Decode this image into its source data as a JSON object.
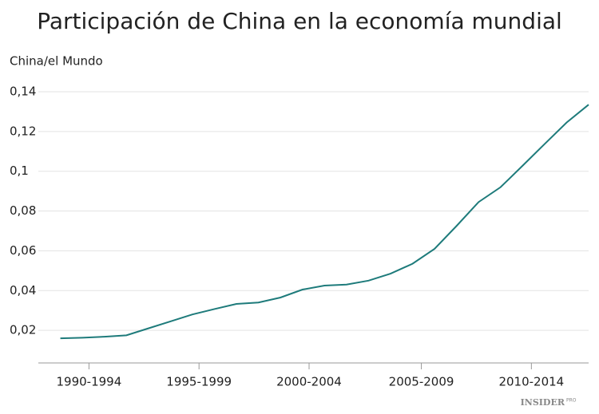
{
  "chart_data": {
    "type": "line",
    "title": "Participación de China en la economía mundial",
    "y_label": "China/el Mundo",
    "logo": "INSIDER",
    "logo_suffix": "PRO",
    "x": [
      1990,
      1991,
      1992,
      1993,
      1994,
      1995,
      1996,
      1997,
      1998,
      1999,
      2000,
      2001,
      2002,
      2003,
      2004,
      2005,
      2006,
      2007,
      2008,
      2009,
      2010,
      2011,
      2012,
      2013,
      2014
    ],
    "values": [
      0.016,
      0.0163,
      0.0168,
      0.0175,
      0.021,
      0.0245,
      0.028,
      0.0307,
      0.0333,
      0.034,
      0.0365,
      0.0405,
      0.0425,
      0.043,
      0.045,
      0.0485,
      0.0535,
      0.061,
      0.0725,
      0.0845,
      0.092,
      0.1028,
      0.1137,
      0.1245,
      0.1335
    ],
    "color": "#1e7b7b",
    "xlim": [
      1989,
      2014
    ],
    "xticks": [
      {
        "value": 1991.3,
        "label": "1990-1994"
      },
      {
        "value": 1996.3,
        "label": "1995-1999"
      },
      {
        "value": 2001.3,
        "label": "2000-2004"
      },
      {
        "value": 2006.4,
        "label": "2005-2009"
      },
      {
        "value": 2011.4,
        "label": "2010-2014"
      }
    ],
    "ylim": [
      0.0036,
      0.14
    ],
    "yticks": [
      {
        "value": 0.02,
        "label": "0,02"
      },
      {
        "value": 0.04,
        "label": "0,04"
      },
      {
        "value": 0.06,
        "label": "0,06"
      },
      {
        "value": 0.08,
        "label": "0,08"
      },
      {
        "value": 0.1,
        "label": "0,1"
      },
      {
        "value": 0.12,
        "label": "0,12"
      },
      {
        "value": 0.14,
        "label": "0,14"
      }
    ],
    "grid": true
  }
}
